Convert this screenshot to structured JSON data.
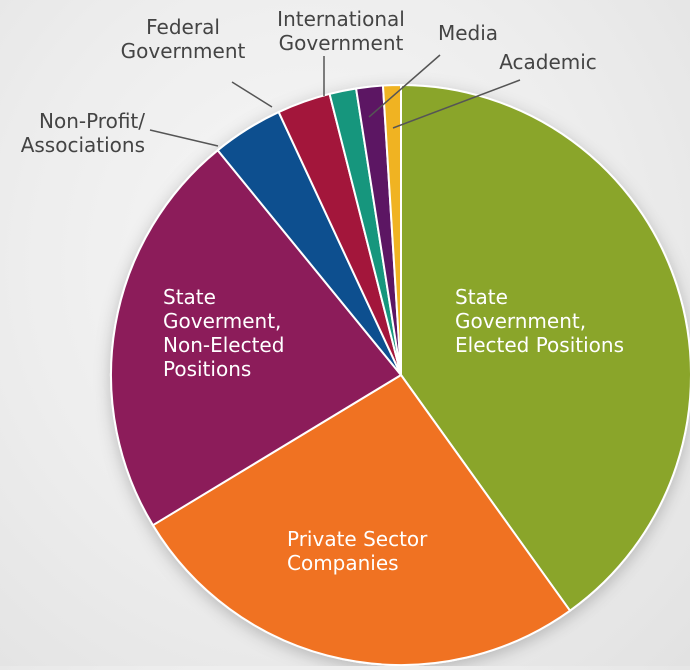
{
  "chart_data": {
    "type": "pie",
    "title": "",
    "start_angle_deg": 0,
    "direction": "clockwise",
    "slices": [
      {
        "label": "State Government, Elected Positions",
        "label_lines": [
          "State",
          "Government,",
          "Elected Positions"
        ],
        "value": 40.5,
        "color": "#8aa52c",
        "label_position": "inside",
        "label_color": "#ffffff"
      },
      {
        "label": "Private Sector Companies",
        "label_lines": [
          "Private Sector",
          "Companies"
        ],
        "value": 26.5,
        "color": "#f07223",
        "label_position": "inside",
        "label_color": "#ffffff"
      },
      {
        "label": "State Goverment, Non-Elected Positions",
        "label_lines": [
          "State",
          "Goverment,",
          "Non-Elected",
          "Positions"
        ],
        "value": 23.0,
        "color": "#8c1f5a",
        "label_position": "inside",
        "label_color": "#ffffff"
      },
      {
        "label": "Non-Profit/ Associations",
        "label_lines": [
          "Non-Profit/",
          "Associations"
        ],
        "value": 4.0,
        "color": "#0f4f8f",
        "label_position": "outside",
        "label_color": "#444444"
      },
      {
        "label": "Federal Government",
        "label_lines": [
          "Federal",
          "Government"
        ],
        "value": 3.0,
        "color": "#a3173a",
        "label_position": "outside",
        "label_color": "#444444"
      },
      {
        "label": "International Government",
        "label_lines": [
          "International",
          "Government"
        ],
        "value": 1.5,
        "color": "#17967d",
        "label_position": "outside",
        "label_color": "#444444"
      },
      {
        "label": "Media",
        "label_lines": [
          "Media"
        ],
        "value": 1.5,
        "color": "#5b1363",
        "label_position": "outside",
        "label_color": "#444444"
      },
      {
        "label": "Academic",
        "label_lines": [
          "Academic"
        ],
        "value": 1.0,
        "color": "#f0b323",
        "label_position": "outside",
        "label_color": "#444444"
      }
    ]
  }
}
